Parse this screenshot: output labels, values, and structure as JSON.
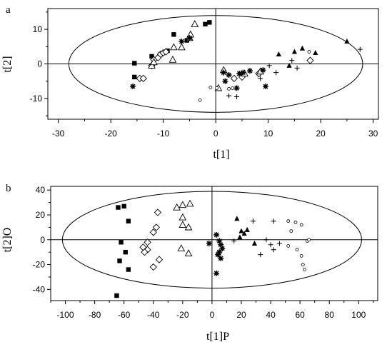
{
  "chart_data": [
    {
      "type": "scatter",
      "panel_label": "a",
      "xlabel": "t[1]",
      "ylabel": "t[2]",
      "xlim": [
        -32,
        31
      ],
      "ylim": [
        -16,
        16
      ],
      "xticks": [
        -30,
        -20,
        -10,
        0,
        10,
        20,
        30
      ],
      "yticks": [
        -10,
        0,
        10
      ],
      "zero_lines": true,
      "ellipse": {
        "cx": 0,
        "cy": 0,
        "rx": 28,
        "ry": 14
      },
      "series": [
        {
          "marker": "filled-square",
          "points": [
            [
              -15.5,
              0.2
            ],
            [
              -15.5,
              -3.8
            ],
            [
              -12.2,
              2.2
            ],
            [
              -10.5,
              2.8
            ],
            [
              -9.2,
              3.8
            ],
            [
              -8,
              8.5
            ],
            [
              -5.5,
              6.8
            ],
            [
              -5,
              7.5
            ],
            [
              -2,
              11.5
            ],
            [
              -1.2,
              12
            ]
          ]
        },
        {
          "marker": "open-diamond",
          "points": [
            [
              -14.5,
              -4.2
            ],
            [
              -13.8,
              -4.2
            ],
            [
              -12.2,
              -0.5
            ],
            [
              -11.8,
              1.2
            ],
            [
              -11,
              1.8
            ],
            [
              -10.5,
              2.8
            ],
            [
              -10,
              3.2
            ],
            [
              -9.5,
              3.5
            ],
            [
              3.5,
              -4.2
            ],
            [
              5,
              -3.8
            ],
            [
              8.2,
              -2.8
            ],
            [
              18,
              1
            ]
          ]
        },
        {
          "marker": "open-triangle",
          "points": [
            [
              -12.2,
              -0.5
            ],
            [
              -11.8,
              0.5
            ],
            [
              -8.2,
              1.2
            ],
            [
              -8,
              4.8
            ],
            [
              -6.5,
              4.8
            ],
            [
              -5,
              7.5
            ],
            [
              -4.8,
              8.5
            ],
            [
              -4,
              11.5
            ],
            [
              0.5,
              -7
            ],
            [
              1.5,
              -1.8
            ],
            [
              5.5,
              -2.8
            ],
            [
              8.5,
              -2.2
            ]
          ]
        },
        {
          "marker": "filled-triangle",
          "points": [
            [
              12,
              2.8
            ],
            [
              14,
              -0.5
            ],
            [
              15,
              3.5
            ],
            [
              16.5,
              4.5
            ],
            [
              19,
              3.2
            ],
            [
              25,
              6.5
            ]
          ]
        },
        {
          "marker": "asterisk",
          "points": [
            [
              -15.8,
              -6.5
            ],
            [
              -6.5,
              6.5
            ],
            [
              -5,
              7.5
            ],
            [
              1.5,
              -2.5
            ],
            [
              1.8,
              -5
            ],
            [
              2.5,
              -3.2
            ],
            [
              4,
              -7
            ],
            [
              4.5,
              -2.8
            ],
            [
              5.2,
              -2.5
            ],
            [
              6.5,
              -2
            ],
            [
              9,
              -1.8
            ],
            [
              9.5,
              -6.5
            ]
          ]
        },
        {
          "marker": "plus",
          "points": [
            [
              2.5,
              -9.2
            ],
            [
              4,
              -9.5
            ],
            [
              8.5,
              -4.2
            ],
            [
              10.2,
              -0.5
            ],
            [
              11.5,
              -2.5
            ],
            [
              14.5,
              1
            ],
            [
              15.5,
              -1.2
            ],
            [
              27.5,
              4.2
            ]
          ]
        },
        {
          "marker": "small-circle",
          "points": [
            [
              -3,
              -10.5
            ],
            [
              -1,
              -6.8
            ],
            [
              0.2,
              -7
            ],
            [
              2.5,
              -7.2
            ],
            [
              3.2,
              -7
            ],
            [
              17.8,
              3.5
            ]
          ]
        }
      ]
    },
    {
      "type": "scatter",
      "panel_label": "b",
      "xlabel": "t[1]P",
      "ylabel": "t[2]O",
      "xlim": [
        -110,
        113
      ],
      "ylim": [
        -49,
        43
      ],
      "xticks": [
        -100,
        -80,
        -60,
        -40,
        -20,
        0,
        20,
        40,
        60,
        80,
        100
      ],
      "yticks": [
        -40,
        -20,
        0,
        20,
        40
      ],
      "zero_lines": true,
      "ellipse": {
        "cx": 0,
        "cy": 0,
        "rx": 102,
        "ry": 39
      },
      "series": [
        {
          "marker": "filled-square",
          "points": [
            [
              -64,
              26
            ],
            [
              -60,
              27
            ],
            [
              -57,
              15
            ],
            [
              -62,
              -2
            ],
            [
              -59,
              -10
            ],
            [
              -63,
              -17
            ],
            [
              -57,
              -24
            ],
            [
              -65,
              -45
            ]
          ]
        },
        {
          "marker": "open-diamond",
          "points": [
            [
              -37,
              22
            ],
            [
              -38,
              10
            ],
            [
              -40,
              6
            ],
            [
              -44,
              -2
            ],
            [
              -47,
              -6
            ],
            [
              -44,
              -8
            ],
            [
              -46,
              -10
            ],
            [
              -36,
              -16
            ],
            [
              -40,
              -22
            ]
          ]
        },
        {
          "marker": "open-triangle",
          "points": [
            [
              -24,
              26
            ],
            [
              -20,
              28
            ],
            [
              -15,
              29
            ],
            [
              -20,
              18
            ],
            [
              -20,
              12
            ],
            [
              -16,
              10
            ],
            [
              -21,
              -7
            ],
            [
              -16,
              -11
            ]
          ]
        },
        {
          "marker": "filled-triangle",
          "points": [
            [
              17,
              17
            ],
            [
              20,
              7
            ],
            [
              22,
              5
            ],
            [
              24,
              8
            ],
            [
              19,
              2
            ],
            [
              29,
              -3
            ]
          ]
        },
        {
          "marker": "asterisk",
          "points": [
            [
              -2,
              -3
            ],
            [
              3,
              4
            ],
            [
              5,
              -1
            ],
            [
              6,
              -4
            ],
            [
              7,
              -7
            ],
            [
              5,
              -10
            ],
            [
              4,
              -12
            ],
            [
              6,
              -15
            ],
            [
              3,
              -27
            ]
          ]
        },
        {
          "marker": "plus",
          "points": [
            [
              15,
              -1
            ],
            [
              28,
              15
            ],
            [
              33,
              -12
            ],
            [
              37,
              0
            ],
            [
              40,
              -4
            ],
            [
              42,
              15
            ],
            [
              42,
              -8
            ],
            [
              46,
              -3
            ]
          ]
        },
        {
          "marker": "small-circle",
          "points": [
            [
              52,
              15
            ],
            [
              57,
              14
            ],
            [
              54,
              7
            ],
            [
              61,
              12
            ],
            [
              65,
              -1
            ],
            [
              52,
              -5
            ],
            [
              58,
              -8
            ],
            [
              61,
              -13
            ],
            [
              62,
              -20
            ],
            [
              63,
              -24
            ],
            [
              66,
              0
            ]
          ]
        }
      ]
    }
  ]
}
